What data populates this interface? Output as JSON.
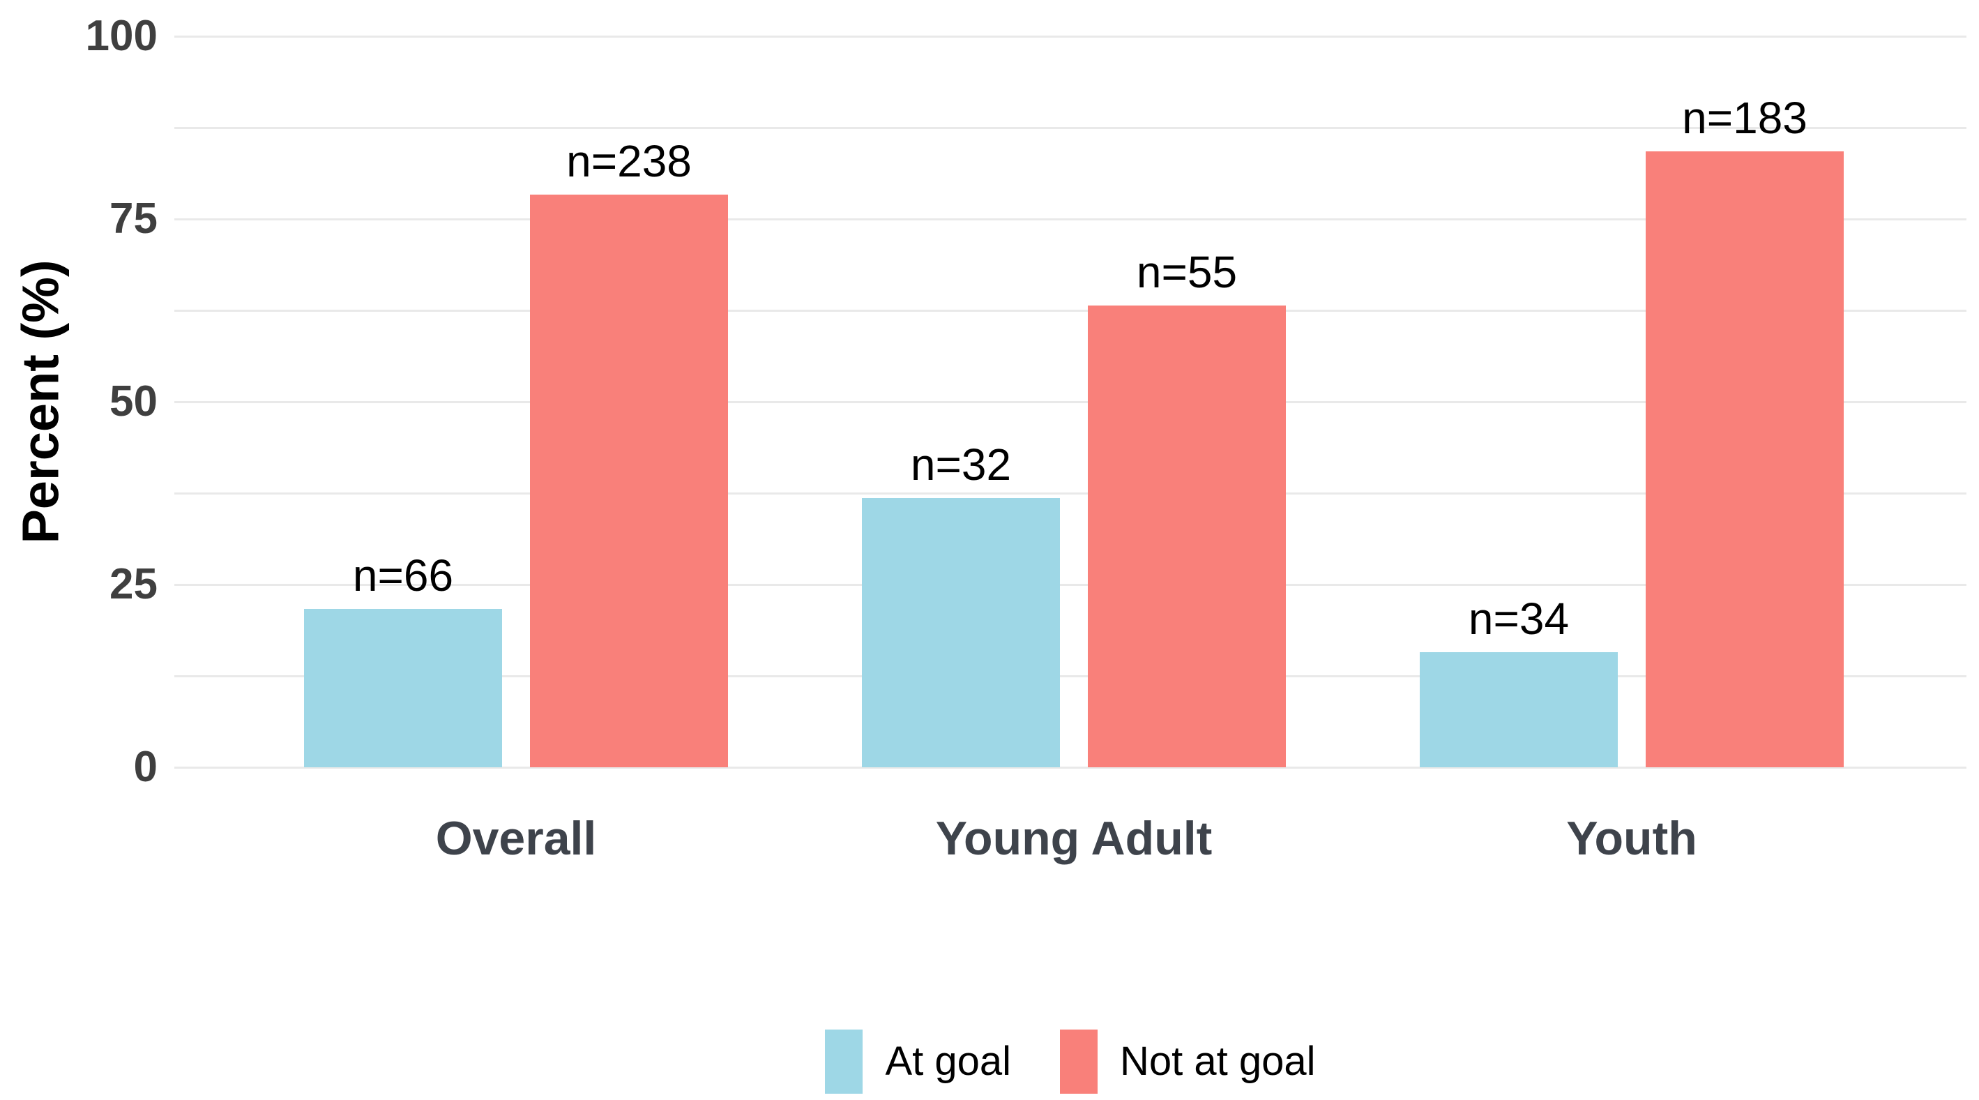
{
  "chart_data": {
    "type": "bar",
    "title": "",
    "xlabel": "",
    "ylabel": "Percent (%)",
    "categories": [
      "Overall",
      "Young Adult",
      "Youth"
    ],
    "series": [
      {
        "name": "At goal",
        "color": "#9ED7E6",
        "values": [
          21.7,
          36.8,
          15.7
        ],
        "bar_labels": [
          "n=66",
          "n=32",
          "n=34"
        ]
      },
      {
        "name": "Not at goal",
        "color": "#F9807A",
        "values": [
          78.3,
          63.2,
          84.3
        ],
        "bar_labels": [
          "n=238",
          "n=55",
          "n=183"
        ]
      }
    ],
    "ylim": [
      0,
      100
    ],
    "yticks": [
      0,
      25,
      50,
      75,
      100
    ],
    "ytick_labels": [
      "0",
      "25",
      "50",
      "75",
      "100"
    ],
    "minor_grid_step": 12.5,
    "grid": "horizontal",
    "legend_position": "bottom",
    "colors": {
      "background": "#FFFFFF",
      "gridline": "#E9E9E9",
      "y_tick_label": "#3F3F3F",
      "x_tick_label": "#3E434B",
      "bar_label": "#000000",
      "axis_title": "#000000"
    }
  }
}
